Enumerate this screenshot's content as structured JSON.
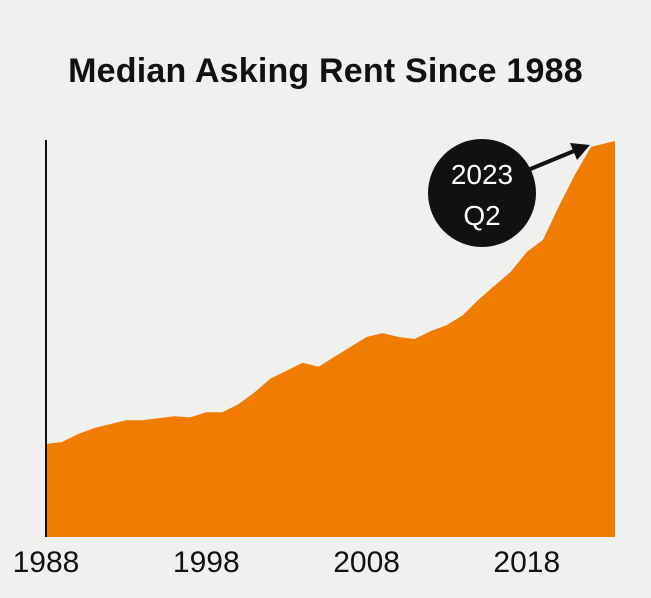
{
  "chart_data": {
    "type": "area",
    "title": "Median Asking Rent Since 1988",
    "xlabel": "",
    "ylabel": "",
    "x_ticks": [
      "1988",
      "1998",
      "2008",
      "2018"
    ],
    "xlim": [
      1988,
      2023.5
    ],
    "ylim": [
      0,
      100
    ],
    "grid": false,
    "color": "#f07c00",
    "x": [
      1988,
      1989,
      1990,
      1991,
      1992,
      1993,
      1994,
      1995,
      1996,
      1997,
      1998,
      1999,
      2000,
      2001,
      2002,
      2003,
      2004,
      2005,
      2006,
      2007,
      2008,
      2009,
      2010,
      2011,
      2012,
      2013,
      2014,
      2015,
      2016,
      2017,
      2018,
      2019,
      2020,
      2021,
      2022,
      2023.5
    ],
    "values": [
      23.5,
      24,
      26,
      27.5,
      28.5,
      29.5,
      29.5,
      30,
      30.5,
      30.2,
      31.5,
      31.5,
      33.5,
      36.5,
      40,
      42,
      44,
      43,
      45.5,
      48,
      50.5,
      51.5,
      50.5,
      50,
      52,
      53.5,
      56,
      60,
      63.5,
      67,
      72,
      75,
      83.5,
      91.5,
      98.5,
      100
    ],
    "annotation": {
      "line1": "2023",
      "line2": "Q2"
    }
  }
}
